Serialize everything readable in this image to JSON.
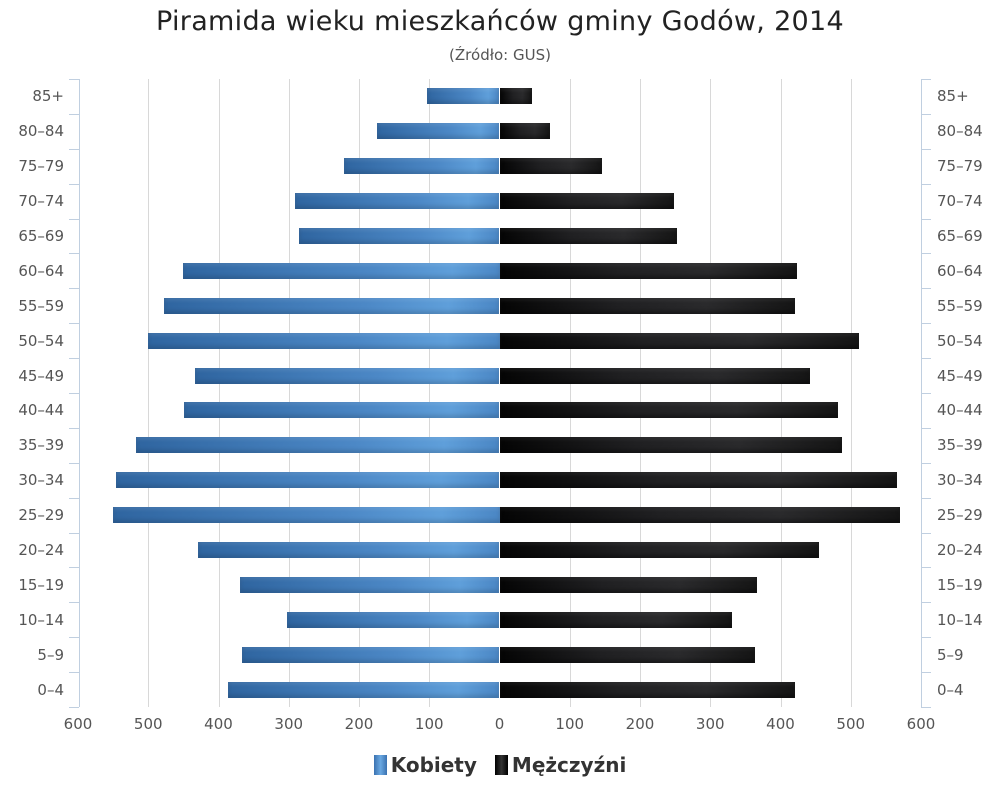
{
  "title": "Piramida wieku mieszkańców gminy Godów, 2014",
  "subtitle": "(Źródło: GUS)",
  "legend": [
    {
      "label": "Kobiety",
      "color": "#4a86c4"
    },
    {
      "label": "Mężczyźni",
      "color": "#1a1a1a"
    }
  ],
  "x_ticks": [
    "600",
    "500",
    "400",
    "300",
    "200",
    "100",
    "0",
    "100",
    "200",
    "300",
    "400",
    "500",
    "600"
  ],
  "chart_data": {
    "type": "bar",
    "orientation": "horizontal-pyramid",
    "title": "Piramida wieku mieszkańców gminy Godów, 2014",
    "subtitle": "(Źródło: GUS)",
    "categories": [
      "85+",
      "80-84",
      "75-79",
      "70-74",
      "65-69",
      "60-64",
      "55-59",
      "50-54",
      "45-49",
      "40-44",
      "35-39",
      "30-34",
      "25-29",
      "20-24",
      "15-19",
      "10-14",
      "5-9",
      "0-4"
    ],
    "series": [
      {
        "name": "Kobiety",
        "side": "left",
        "values": [
          103,
          174,
          221,
          291,
          286,
          450,
          477,
          500,
          434,
          449,
          517,
          546,
          550,
          429,
          369,
          303,
          367,
          387
        ]
      },
      {
        "name": "Mężczyźni",
        "side": "right",
        "values": [
          46,
          72,
          146,
          248,
          252,
          424,
          420,
          512,
          442,
          482,
          487,
          566,
          570,
          455,
          366,
          331,
          363,
          420
        ]
      }
    ],
    "xlabel": "",
    "ylabel": "",
    "xlim": [
      -600,
      600
    ],
    "x_tick_labels": [
      "600",
      "500",
      "400",
      "300",
      "200",
      "100",
      "0",
      "100",
      "200",
      "300",
      "400",
      "500",
      "600"
    ],
    "grid": true,
    "legend_position": "bottom"
  }
}
